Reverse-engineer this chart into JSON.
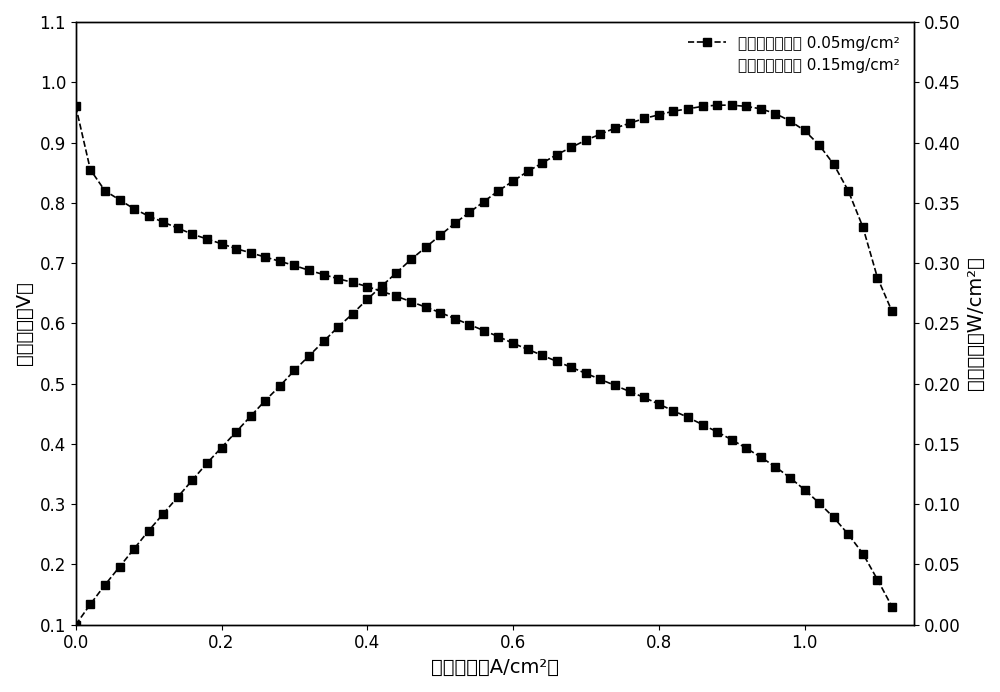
{
  "title": "",
  "xlabel": "电流密度（A/cm²）",
  "ylabel_left": "电池电压（V）",
  "ylabel_right": "功率密度（W/cm²）",
  "legend_line1": "基底钓颗粒载量 0.05mg/cm²",
  "legend_line2": "沉积钓纳米载量 0.15mg/cm²",
  "voltage_current": [
    [
      0.0,
      0.96
    ],
    [
      0.02,
      0.855
    ],
    [
      0.04,
      0.82
    ],
    [
      0.06,
      0.805
    ],
    [
      0.08,
      0.79
    ],
    [
      0.1,
      0.778
    ],
    [
      0.12,
      0.768
    ],
    [
      0.14,
      0.758
    ],
    [
      0.16,
      0.748
    ],
    [
      0.18,
      0.74
    ],
    [
      0.2,
      0.732
    ],
    [
      0.22,
      0.724
    ],
    [
      0.24,
      0.717
    ],
    [
      0.26,
      0.71
    ],
    [
      0.28,
      0.703
    ],
    [
      0.3,
      0.696
    ],
    [
      0.32,
      0.688
    ],
    [
      0.34,
      0.681
    ],
    [
      0.36,
      0.674
    ],
    [
      0.38,
      0.668
    ],
    [
      0.4,
      0.661
    ],
    [
      0.42,
      0.653
    ],
    [
      0.44,
      0.645
    ],
    [
      0.46,
      0.636
    ],
    [
      0.48,
      0.627
    ],
    [
      0.5,
      0.618
    ],
    [
      0.52,
      0.608
    ],
    [
      0.54,
      0.598
    ],
    [
      0.56,
      0.588
    ],
    [
      0.58,
      0.578
    ],
    [
      0.6,
      0.567
    ],
    [
      0.62,
      0.557
    ],
    [
      0.64,
      0.547
    ],
    [
      0.66,
      0.537
    ],
    [
      0.68,
      0.527
    ],
    [
      0.7,
      0.517
    ],
    [
      0.72,
      0.507
    ],
    [
      0.74,
      0.497
    ],
    [
      0.76,
      0.487
    ],
    [
      0.78,
      0.477
    ],
    [
      0.8,
      0.466
    ],
    [
      0.82,
      0.455
    ],
    [
      0.84,
      0.444
    ],
    [
      0.86,
      0.432
    ],
    [
      0.88,
      0.42
    ],
    [
      0.9,
      0.407
    ],
    [
      0.92,
      0.393
    ],
    [
      0.94,
      0.378
    ],
    [
      0.96,
      0.362
    ],
    [
      0.98,
      0.344
    ],
    [
      1.0,
      0.324
    ],
    [
      1.02,
      0.302
    ],
    [
      1.04,
      0.278
    ],
    [
      1.06,
      0.25
    ],
    [
      1.08,
      0.218
    ],
    [
      1.1,
      0.175
    ],
    [
      1.12,
      0.13
    ]
  ],
  "power_current": [
    [
      0.0,
      0.0
    ],
    [
      0.02,
      0.017
    ],
    [
      0.04,
      0.033
    ],
    [
      0.06,
      0.048
    ],
    [
      0.08,
      0.063
    ],
    [
      0.1,
      0.078
    ],
    [
      0.12,
      0.092
    ],
    [
      0.14,
      0.106
    ],
    [
      0.16,
      0.12
    ],
    [
      0.18,
      0.134
    ],
    [
      0.2,
      0.147
    ],
    [
      0.22,
      0.16
    ],
    [
      0.24,
      0.173
    ],
    [
      0.26,
      0.186
    ],
    [
      0.28,
      0.198
    ],
    [
      0.3,
      0.211
    ],
    [
      0.32,
      0.223
    ],
    [
      0.34,
      0.235
    ],
    [
      0.36,
      0.247
    ],
    [
      0.38,
      0.258
    ],
    [
      0.4,
      0.27
    ],
    [
      0.42,
      0.281
    ],
    [
      0.44,
      0.292
    ],
    [
      0.46,
      0.303
    ],
    [
      0.48,
      0.313
    ],
    [
      0.5,
      0.323
    ],
    [
      0.52,
      0.333
    ],
    [
      0.54,
      0.342
    ],
    [
      0.56,
      0.351
    ],
    [
      0.58,
      0.36
    ],
    [
      0.6,
      0.368
    ],
    [
      0.62,
      0.376
    ],
    [
      0.64,
      0.383
    ],
    [
      0.66,
      0.39
    ],
    [
      0.68,
      0.396
    ],
    [
      0.7,
      0.402
    ],
    [
      0.72,
      0.407
    ],
    [
      0.74,
      0.412
    ],
    [
      0.76,
      0.416
    ],
    [
      0.78,
      0.42
    ],
    [
      0.8,
      0.423
    ],
    [
      0.82,
      0.426
    ],
    [
      0.84,
      0.428
    ],
    [
      0.86,
      0.43
    ],
    [
      0.88,
      0.431
    ],
    [
      0.9,
      0.431
    ],
    [
      0.92,
      0.43
    ],
    [
      0.94,
      0.428
    ],
    [
      0.96,
      0.424
    ],
    [
      0.98,
      0.418
    ],
    [
      1.0,
      0.41
    ],
    [
      1.02,
      0.398
    ],
    [
      1.04,
      0.382
    ],
    [
      1.06,
      0.36
    ],
    [
      1.08,
      0.33
    ],
    [
      1.1,
      0.288
    ],
    [
      1.12,
      0.26
    ]
  ],
  "xlim": [
    0.0,
    1.15
  ],
  "ylim_left": [
    0.1,
    1.1
  ],
  "ylim_right": [
    0.0,
    0.5
  ],
  "xticks": [
    0.0,
    0.2,
    0.4,
    0.6,
    0.8,
    1.0
  ],
  "yticks_left": [
    0.1,
    0.2,
    0.3,
    0.4,
    0.5,
    0.6,
    0.7,
    0.8,
    0.9,
    1.0,
    1.1
  ],
  "yticks_right": [
    0.0,
    0.05,
    0.1,
    0.15,
    0.2,
    0.25,
    0.3,
    0.35,
    0.4,
    0.45,
    0.5
  ],
  "color": "#000000",
  "marker": "s",
  "markersize": 6,
  "linewidth": 1.2,
  "linestyle": "--",
  "background_color": "#ffffff",
  "font_size_label": 14,
  "font_size_tick": 12,
  "font_size_legend": 11
}
